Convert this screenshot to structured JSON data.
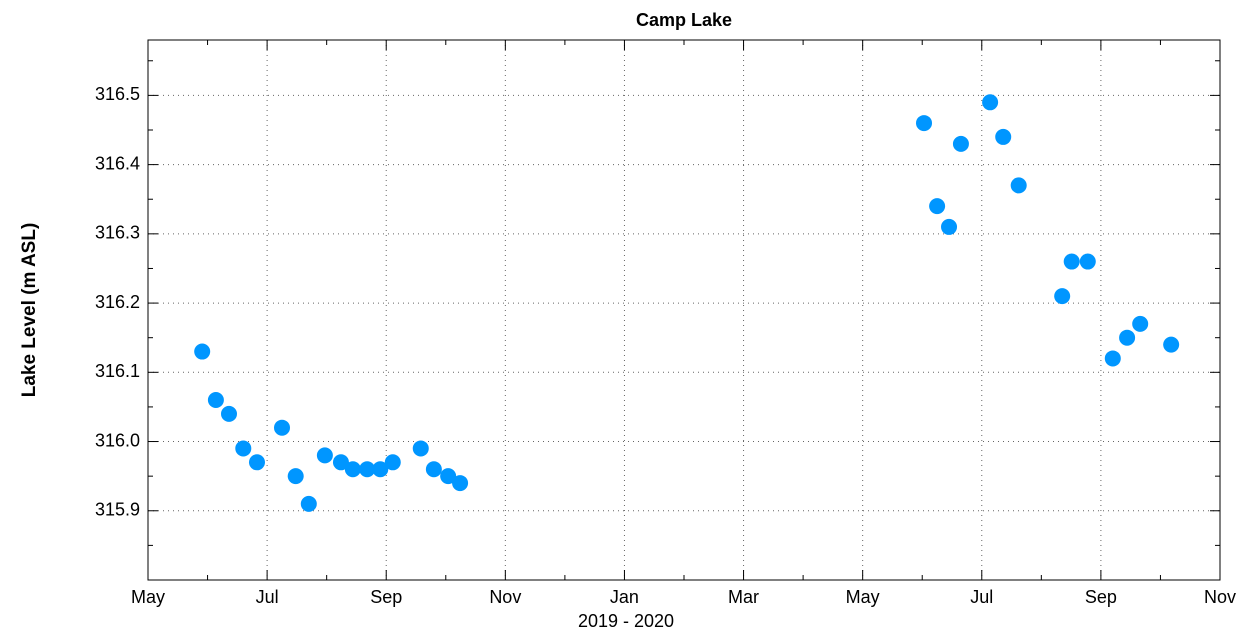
{
  "chart_data": {
    "type": "scatter",
    "title": "Camp Lake",
    "x_label": "2019 - 2020",
    "y_label": "Lake Level (m ASL)",
    "color": "#0096ff",
    "grid": true,
    "xlim": [
      0,
      18
    ],
    "xticks": [
      {
        "value": 0,
        "label": "May"
      },
      {
        "value": 2,
        "label": "Jul"
      },
      {
        "value": 4,
        "label": "Sep"
      },
      {
        "value": 6,
        "label": "Nov"
      },
      {
        "value": 8,
        "label": "Jan"
      },
      {
        "value": 10,
        "label": "Mar"
      },
      {
        "value": 12,
        "label": "May"
      },
      {
        "value": 14,
        "label": "Jul"
      },
      {
        "value": 16,
        "label": "Sep"
      },
      {
        "value": 18,
        "label": "Nov"
      }
    ],
    "xminorticks": [
      1,
      3,
      5,
      7,
      9,
      11,
      13,
      15,
      17
    ],
    "ylim": [
      315.8,
      316.58
    ],
    "yticks": [
      315.9,
      {
        "value": 316.0,
        "label": "316.0"
      },
      316.1,
      316.2,
      316.3,
      316.4,
      316.5
    ],
    "yminorticks": [
      315.85,
      315.95,
      316.05,
      316.15,
      316.25,
      316.35,
      316.45,
      316.55
    ],
    "x": [
      0.91,
      1.14,
      1.36,
      1.6,
      1.83,
      2.25,
      2.48,
      2.7,
      2.97,
      3.24,
      3.44,
      3.68,
      3.9,
      4.11,
      4.58,
      4.8,
      5.04,
      5.24,
      13.03,
      13.25,
      13.45,
      13.65,
      14.14,
      14.36,
      14.62,
      15.35,
      15.51,
      15.78,
      16.2,
      16.44,
      16.66,
      17.18
    ],
    "values": [
      316.13,
      316.06,
      316.04,
      315.99,
      315.97,
      316.02,
      315.95,
      315.91,
      315.98,
      315.97,
      315.96,
      315.96,
      315.96,
      315.97,
      315.99,
      315.96,
      315.95,
      315.94,
      316.46,
      316.34,
      316.31,
      316.43,
      316.49,
      316.44,
      316.37,
      316.21,
      316.26,
      316.26,
      316.12,
      316.15,
      316.17,
      316.14
    ]
  }
}
